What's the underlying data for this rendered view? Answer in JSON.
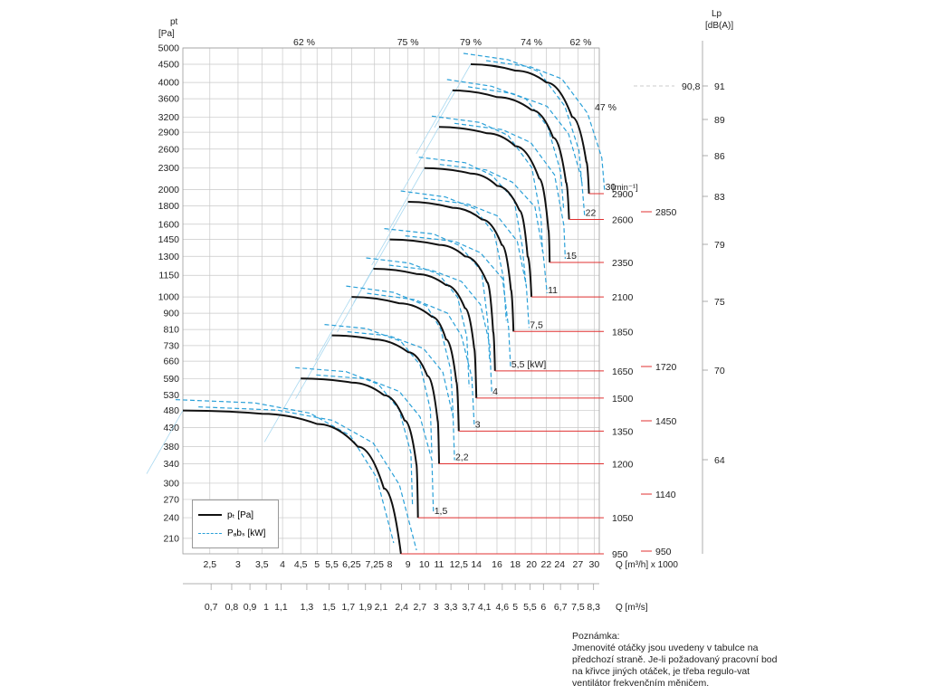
{
  "chart_data": {
    "type": "line",
    "ylabel": "pt [Pa]",
    "xlabel_m3h": "Q [m³/h] x 1000",
    "xlabel_m3s": "Q [m³/s]",
    "right_axis_label": "Lp [dB(A)]",
    "rpm_unit_label": "[min⁻¹]",
    "y_ticks": [
      5000,
      4500,
      4000,
      3600,
      3200,
      2900,
      2600,
      2300,
      2000,
      1800,
      1600,
      1450,
      1300,
      1150,
      1000,
      900,
      810,
      730,
      660,
      590,
      530,
      480,
      430,
      380,
      340,
      300,
      270,
      240,
      210
    ],
    "x_ticks_m3h": [
      "2,5",
      "3",
      "3,5",
      "4",
      "4,5",
      "5",
      "5,5",
      "6,25",
      "7,25",
      "8",
      "9",
      "10",
      "11",
      "12,5",
      "14",
      "16",
      "18",
      "20",
      "22",
      "24",
      "27",
      "30"
    ],
    "x_ticks_m3s": [
      "0,7",
      "0,8",
      "0,9",
      "1",
      "1,1",
      "1,3",
      "1,5",
      "1,7",
      "1,9",
      "2,1",
      "2,4",
      "2,7",
      "3",
      "3,3",
      "3,7",
      "4,1",
      "4,6",
      "5",
      "5,5",
      "6",
      "6,7",
      "7,5",
      "8,3"
    ],
    "efficiency_labels": [
      "62 %",
      "75 %",
      "79 %",
      "74 %",
      "62 %",
      "47 %"
    ],
    "lp_ticks": [
      "91",
      "89",
      "86",
      "83",
      "79",
      "75",
      "70",
      "64"
    ],
    "lp_marker": "90,8",
    "rpm_values": [
      "2900",
      "2600",
      "2350",
      "2100",
      "1850",
      "1650",
      "1500",
      "1350",
      "1200",
      "1050",
      "950"
    ],
    "rpm_nominal": [
      "2850",
      "1720",
      "1450",
      "1140",
      "950"
    ],
    "series_pressure": [
      {
        "rpm": "2900",
        "power": "30",
        "points": [
          [
            13.5,
            4500
          ],
          [
            18,
            4320
          ],
          [
            22,
            4000
          ],
          [
            26,
            3200
          ],
          [
            28.5,
            2400
          ],
          [
            29,
            1950
          ]
        ]
      },
      {
        "rpm": "2600",
        "power": "22",
        "points": [
          [
            12,
            3800
          ],
          [
            16,
            3640
          ],
          [
            20,
            3350
          ],
          [
            23,
            2800
          ],
          [
            25,
            2100
          ],
          [
            25.5,
            1650
          ]
        ]
      },
      {
        "rpm": "2350",
        "power": "15",
        "points": [
          [
            11,
            3000
          ],
          [
            15,
            2880
          ],
          [
            18,
            2650
          ],
          [
            21,
            2150
          ],
          [
            22.3,
            1550
          ],
          [
            22.5,
            1250
          ]
        ]
      },
      {
        "rpm": "2100",
        "power": "11",
        "points": [
          [
            10,
            2300
          ],
          [
            13.5,
            2220
          ],
          [
            16,
            2050
          ],
          [
            18.5,
            1750
          ],
          [
            19.5,
            1300
          ],
          [
            20,
            1000
          ]
        ]
      },
      {
        "rpm": "1850",
        "power": "7,5",
        "points": [
          [
            9,
            1850
          ],
          [
            12,
            1780
          ],
          [
            14.5,
            1650
          ],
          [
            16.5,
            1400
          ],
          [
            17.5,
            1050
          ],
          [
            17.8,
            800
          ]
        ]
      },
      {
        "rpm": "1650",
        "power": "5,5 [kW]",
        "points": [
          [
            8,
            1450
          ],
          [
            11,
            1400
          ],
          [
            13,
            1300
          ],
          [
            15,
            1100
          ],
          [
            15.6,
            800
          ],
          [
            15.8,
            620
          ]
        ]
      },
      {
        "rpm": "1500",
        "power": "4",
        "points": [
          [
            7.2,
            1200
          ],
          [
            9.5,
            1160
          ],
          [
            11.5,
            1080
          ],
          [
            13,
            930
          ],
          [
            13.8,
            720
          ],
          [
            14,
            520
          ]
        ]
      },
      {
        "rpm": "1350",
        "power": "3",
        "points": [
          [
            6.25,
            1000
          ],
          [
            8.5,
            960
          ],
          [
            10.5,
            880
          ],
          [
            11.5,
            760
          ],
          [
            12.3,
            580
          ],
          [
            12.5,
            420
          ]
        ]
      },
      {
        "rpm": "1200",
        "power": "2,2",
        "points": [
          [
            5.5,
            780
          ],
          [
            7.2,
            760
          ],
          [
            9,
            700
          ],
          [
            10.2,
            600
          ],
          [
            10.9,
            450
          ],
          [
            11,
            340
          ]
        ]
      },
      {
        "rpm": "1050",
        "power": "1,5",
        "points": [
          [
            4.5,
            590
          ],
          [
            6.25,
            575
          ],
          [
            7.7,
            530
          ],
          [
            8.8,
            450
          ],
          [
            9.5,
            340
          ],
          [
            9.6,
            240
          ]
        ]
      },
      {
        "rpm": "950",
        "power": "",
        "points": [
          [
            2.1,
            480
          ],
          [
            3.5,
            470
          ],
          [
            5,
            440
          ],
          [
            6.5,
            380
          ],
          [
            7.7,
            290
          ],
          [
            8.6,
            190
          ]
        ]
      }
    ]
  },
  "legend": {
    "pt_label": "pₜ [Pa]",
    "pabs_label": "Pₐbₛ [kW]"
  },
  "note": {
    "title": "Poznámka:",
    "text": "Jmenovité otáčky jsou uvedeny v tabulce na předchozí straně. Je-li požadovaný pracovní bod na křivce jiných otáček, je třeba regulo-vat ventilátor frekvenčním měničem."
  },
  "colors": {
    "pressure": "#111111",
    "power": "#2aa0d8",
    "rpm_line": "#e03030",
    "grid": "#c8c8c8"
  }
}
